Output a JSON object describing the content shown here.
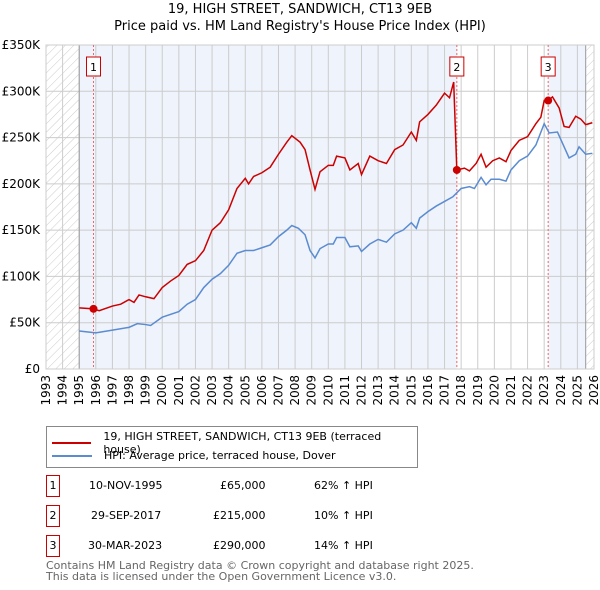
{
  "chart_data": {
    "type": "line",
    "title": "19, HIGH STREET, SANDWICH, CT13 9EB",
    "subtitle": "Price paid vs. HM Land Registry's House Price Index (HPI)",
    "xlim": [
      1993,
      2026
    ],
    "ylim": [
      0,
      350000
    ],
    "yticks": [
      {
        "v": 0,
        "l": "£0"
      },
      {
        "v": 50000,
        "l": "£50K"
      },
      {
        "v": 100000,
        "l": "£100K"
      },
      {
        "v": 150000,
        "l": "£150K"
      },
      {
        "v": 200000,
        "l": "£200K"
      },
      {
        "v": 250000,
        "l": "£250K"
      },
      {
        "v": 300000,
        "l": "£300K"
      },
      {
        "v": 350000,
        "l": "£350K"
      }
    ],
    "xticks": [
      "1993",
      "1994",
      "1995",
      "1996",
      "1997",
      "1998",
      "1999",
      "2000",
      "2001",
      "2002",
      "2003",
      "2004",
      "2005",
      "2006",
      "2007",
      "2008",
      "2009",
      "2010",
      "2011",
      "2012",
      "2013",
      "2014",
      "2015",
      "2016",
      "2017",
      "2018",
      "2019",
      "2020",
      "2021",
      "2022",
      "2023",
      "2024",
      "2025",
      "2026"
    ],
    "grid": true,
    "series": [
      {
        "name": "19, HIGH STREET, SANDWICH, CT13 9EB (terraced house)",
        "color": "#cc0000",
        "points": [
          [
            1995,
            66000
          ],
          [
            1995.86,
            65000
          ],
          [
            1996.2,
            63000
          ],
          [
            1997,
            68000
          ],
          [
            1997.5,
            70000
          ],
          [
            1998,
            75000
          ],
          [
            1998.3,
            72000
          ],
          [
            1998.6,
            80000
          ],
          [
            1999,
            78000
          ],
          [
            1999.5,
            76000
          ],
          [
            2000,
            88000
          ],
          [
            2000.5,
            95000
          ],
          [
            2001,
            101000
          ],
          [
            2001.5,
            113000
          ],
          [
            2002,
            117000
          ],
          [
            2002.5,
            128000
          ],
          [
            2003,
            150000
          ],
          [
            2003.5,
            158000
          ],
          [
            2004,
            172000
          ],
          [
            2004.5,
            195000
          ],
          [
            2005,
            206000
          ],
          [
            2005.2,
            200000
          ],
          [
            2005.5,
            208000
          ],
          [
            2006,
            212000
          ],
          [
            2006.5,
            218000
          ],
          [
            2007,
            232000
          ],
          [
            2007.5,
            245000
          ],
          [
            2007.8,
            252000
          ],
          [
            2008.3,
            245000
          ],
          [
            2008.6,
            237000
          ],
          [
            2008.9,
            215000
          ],
          [
            2009.2,
            194000
          ],
          [
            2009.5,
            213000
          ],
          [
            2010,
            220000
          ],
          [
            2010.3,
            220000
          ],
          [
            2010.5,
            230000
          ],
          [
            2011,
            228000
          ],
          [
            2011.3,
            215000
          ],
          [
            2011.8,
            222000
          ],
          [
            2012,
            210000
          ],
          [
            2012.5,
            230000
          ],
          [
            2013,
            225000
          ],
          [
            2013.5,
            222000
          ],
          [
            2014,
            237000
          ],
          [
            2014.5,
            242000
          ],
          [
            2015,
            256000
          ],
          [
            2015.3,
            247000
          ],
          [
            2015.5,
            267000
          ],
          [
            2016,
            275000
          ],
          [
            2016.5,
            285000
          ],
          [
            2017,
            298000
          ],
          [
            2017.3,
            293000
          ],
          [
            2017.55,
            310000
          ],
          [
            2017.74,
            215000
          ],
          [
            2018.2,
            217000
          ],
          [
            2018.5,
            214000
          ],
          [
            2018.9,
            222000
          ],
          [
            2019.2,
            232000
          ],
          [
            2019.5,
            218000
          ],
          [
            2019.9,
            225000
          ],
          [
            2020.3,
            228000
          ],
          [
            2020.7,
            224000
          ],
          [
            2021,
            236000
          ],
          [
            2021.5,
            247000
          ],
          [
            2022,
            251000
          ],
          [
            2022.5,
            265000
          ],
          [
            2022.8,
            272000
          ],
          [
            2023,
            290000
          ],
          [
            2023.24,
            290000
          ],
          [
            2023.5,
            294000
          ],
          [
            2023.9,
            282000
          ],
          [
            2024.2,
            262000
          ],
          [
            2024.5,
            261000
          ],
          [
            2024.9,
            273000
          ],
          [
            2025.2,
            270000
          ],
          [
            2025.5,
            264000
          ],
          [
            2025.9,
            266000
          ]
        ]
      },
      {
        "name": "HPI: Average price, terraced house, Dover",
        "color": "#5b8bd0",
        "points": [
          [
            1995,
            41000
          ],
          [
            1996,
            39000
          ],
          [
            1997,
            42000
          ],
          [
            1998,
            45000
          ],
          [
            1998.5,
            49000
          ],
          [
            1999,
            48000
          ],
          [
            1999.3,
            47000
          ],
          [
            2000,
            56000
          ],
          [
            2001,
            62000
          ],
          [
            2001.5,
            70000
          ],
          [
            2002,
            75000
          ],
          [
            2002.5,
            88000
          ],
          [
            2003,
            97000
          ],
          [
            2003.5,
            103000
          ],
          [
            2004,
            112000
          ],
          [
            2004.5,
            125000
          ],
          [
            2005,
            128000
          ],
          [
            2005.5,
            128000
          ],
          [
            2006,
            131000
          ],
          [
            2006.5,
            134000
          ],
          [
            2007,
            143000
          ],
          [
            2007.5,
            150000
          ],
          [
            2007.8,
            155000
          ],
          [
            2008.2,
            152000
          ],
          [
            2008.6,
            145000
          ],
          [
            2008.9,
            128000
          ],
          [
            2009.2,
            120000
          ],
          [
            2009.5,
            130000
          ],
          [
            2010,
            135000
          ],
          [
            2010.3,
            135000
          ],
          [
            2010.5,
            142000
          ],
          [
            2011,
            142000
          ],
          [
            2011.3,
            132000
          ],
          [
            2011.8,
            133000
          ],
          [
            2012,
            127000
          ],
          [
            2012.5,
            135000
          ],
          [
            2013,
            140000
          ],
          [
            2013.5,
            137000
          ],
          [
            2014,
            146000
          ],
          [
            2014.5,
            150000
          ],
          [
            2015,
            158000
          ],
          [
            2015.3,
            152000
          ],
          [
            2015.5,
            163000
          ],
          [
            2016,
            170000
          ],
          [
            2016.5,
            176000
          ],
          [
            2017,
            181000
          ],
          [
            2017.5,
            186000
          ],
          [
            2018,
            195000
          ],
          [
            2018.5,
            197000
          ],
          [
            2018.8,
            195000
          ],
          [
            2019.2,
            207000
          ],
          [
            2019.5,
            199000
          ],
          [
            2019.8,
            205000
          ],
          [
            2020.3,
            205000
          ],
          [
            2020.7,
            203000
          ],
          [
            2021,
            215000
          ],
          [
            2021.5,
            225000
          ],
          [
            2022,
            230000
          ],
          [
            2022.5,
            242000
          ],
          [
            2023,
            265000
          ],
          [
            2023.3,
            255000
          ],
          [
            2023.8,
            256000
          ],
          [
            2024.2,
            240000
          ],
          [
            2024.5,
            228000
          ],
          [
            2024.9,
            232000
          ],
          [
            2025.1,
            240000
          ],
          [
            2025.5,
            232000
          ],
          [
            2025.9,
            233000
          ]
        ]
      }
    ],
    "sales": [
      {
        "label": "1",
        "date": "10-NOV-1995",
        "x": 1995.86,
        "price": 65000,
        "price_text": "£65,000",
        "hpi": "62% ↑ HPI"
      },
      {
        "label": "2",
        "date": "29-SEP-2017",
        "x": 2017.74,
        "price": 215000,
        "price_text": "£215,000",
        "hpi": "10% ↑ HPI"
      },
      {
        "label": "3",
        "date": "30-MAR-2023",
        "x": 2023.24,
        "price": 290000,
        "price_text": "£290,000",
        "hpi": "14% ↑ HPI"
      }
    ]
  },
  "footer": {
    "line1": "Contains HM Land Registry data © Crown copyright and database right 2025.",
    "line2": "This data is licensed under the Open Government Licence v3.0."
  }
}
